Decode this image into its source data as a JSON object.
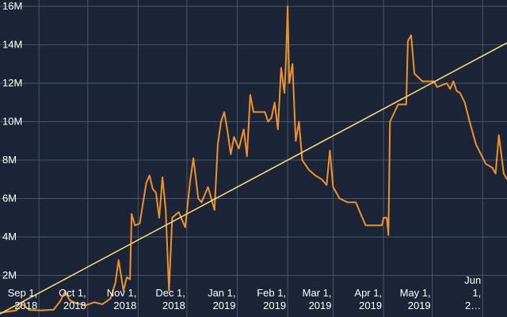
{
  "chart_data": {
    "type": "line",
    "title": "",
    "xlabel": "",
    "ylabel": "",
    "ylim": [
      0,
      16000000
    ],
    "xlim": [
      "2018-08-08",
      "2019-06-16"
    ],
    "grid": true,
    "legend": "none",
    "colors": {
      "background": "#1b2537",
      "grid": "#4a566b",
      "text": "#ffffff",
      "series": "#f0922b",
      "trend": "#f5d77a"
    },
    "y_ticks": [
      {
        "value": 2000000,
        "label": "2M"
      },
      {
        "value": 4000000,
        "label": "4M"
      },
      {
        "value": 6000000,
        "label": "6M"
      },
      {
        "value": 8000000,
        "label": "8M"
      },
      {
        "value": 10000000,
        "label": "10M"
      },
      {
        "value": 12000000,
        "label": "12M"
      },
      {
        "value": 14000000,
        "label": "14M"
      },
      {
        "value": 16000000,
        "label": "16M"
      }
    ],
    "x_ticks": [
      {
        "date": "2018-09-01",
        "lines": [
          "Sep 1,",
          "2018"
        ]
      },
      {
        "date": "2018-10-01",
        "lines": [
          "Oct 1,",
          "2018"
        ]
      },
      {
        "date": "2018-11-01",
        "lines": [
          "Nov 1,",
          "2018"
        ]
      },
      {
        "date": "2018-12-01",
        "lines": [
          "Dec 1,",
          "2018"
        ]
      },
      {
        "date": "2019-01-01",
        "lines": [
          "Jan 1,",
          "2019"
        ]
      },
      {
        "date": "2019-02-01",
        "lines": [
          "Feb 1,",
          "2019"
        ]
      },
      {
        "date": "2019-03-01",
        "lines": [
          "Mar 1,",
          "2019"
        ]
      },
      {
        "date": "2019-04-01",
        "lines": [
          "Apr 1,",
          "2019"
        ]
      },
      {
        "date": "2019-05-01",
        "lines": [
          "May 1,",
          "2019"
        ]
      },
      {
        "date": "2019-06-01",
        "lines": [
          "Jun",
          "1,",
          "2…"
        ]
      }
    ],
    "series": [
      {
        "values": [
          [
            "2018-08-08",
            50000
          ],
          [
            "2018-08-18",
            180000
          ],
          [
            "2018-08-22",
            500000
          ],
          [
            "2018-08-26",
            200000
          ],
          [
            "2018-09-02",
            180000
          ],
          [
            "2018-09-10",
            220000
          ],
          [
            "2018-09-14",
            650000
          ],
          [
            "2018-09-17",
            1150000
          ],
          [
            "2018-09-20",
            700000
          ],
          [
            "2018-09-24",
            550000
          ],
          [
            "2018-09-30",
            450000
          ],
          [
            "2018-10-05",
            600000
          ],
          [
            "2018-10-10",
            500000
          ],
          [
            "2018-10-15",
            800000
          ],
          [
            "2018-10-18",
            1600000
          ],
          [
            "2018-10-20",
            2800000
          ],
          [
            "2018-10-23",
            1200000
          ],
          [
            "2018-10-25",
            1900000
          ],
          [
            "2018-10-27",
            1800000
          ],
          [
            "2018-10-28",
            5200000
          ],
          [
            "2018-10-30",
            4600000
          ],
          [
            "2018-11-02",
            4700000
          ],
          [
            "2018-11-06",
            6800000
          ],
          [
            "2018-11-08",
            7200000
          ],
          [
            "2018-11-10",
            6500000
          ],
          [
            "2018-11-12",
            6300000
          ],
          [
            "2018-11-14",
            5000000
          ],
          [
            "2018-11-16",
            7100000
          ],
          [
            "2018-11-18",
            5400000
          ],
          [
            "2018-11-20",
            1200000
          ],
          [
            "2018-11-22",
            5000000
          ],
          [
            "2018-11-26",
            5300000
          ],
          [
            "2018-11-30",
            4500000
          ],
          [
            "2018-12-03",
            6900000
          ],
          [
            "2018-12-05",
            8100000
          ],
          [
            "2018-12-08",
            6000000
          ],
          [
            "2018-12-10",
            5800000
          ],
          [
            "2018-12-14",
            6600000
          ],
          [
            "2018-12-18",
            5400000
          ],
          [
            "2018-12-20",
            8800000
          ],
          [
            "2018-12-22",
            10000000
          ],
          [
            "2018-12-24",
            10500000
          ],
          [
            "2018-12-26",
            9500000
          ],
          [
            "2018-12-28",
            8300000
          ],
          [
            "2018-12-30",
            9200000
          ],
          [
            "2019-01-02",
            8600000
          ],
          [
            "2019-01-05",
            9600000
          ],
          [
            "2019-01-07",
            8200000
          ],
          [
            "2019-01-09",
            11400000
          ],
          [
            "2019-01-11",
            10500000
          ],
          [
            "2019-01-14",
            10500000
          ],
          [
            "2019-01-18",
            10500000
          ],
          [
            "2019-01-20",
            10000000
          ],
          [
            "2019-01-22",
            10200000
          ],
          [
            "2019-01-24",
            11000000
          ],
          [
            "2019-01-26",
            9600000
          ],
          [
            "2019-01-28",
            12800000
          ],
          [
            "2019-01-30",
            11500000
          ],
          [
            "2019-01-31",
            13200000
          ],
          [
            "2019-02-01",
            16000000
          ],
          [
            "2019-02-02",
            12000000
          ],
          [
            "2019-02-04",
            13000000
          ],
          [
            "2019-02-06",
            9000000
          ],
          [
            "2019-02-08",
            10000000
          ],
          [
            "2019-02-10",
            8000000
          ],
          [
            "2019-02-14",
            7500000
          ],
          [
            "2019-02-18",
            7200000
          ],
          [
            "2019-02-22",
            7000000
          ],
          [
            "2019-02-25",
            6700000
          ],
          [
            "2019-02-27",
            8500000
          ],
          [
            "2019-03-01",
            6600000
          ],
          [
            "2019-03-05",
            6000000
          ],
          [
            "2019-03-10",
            5800000
          ],
          [
            "2019-03-15",
            5800000
          ],
          [
            "2019-03-21",
            4600000
          ],
          [
            "2019-03-28",
            4600000
          ],
          [
            "2019-03-31",
            4600000
          ],
          [
            "2019-04-01",
            5000000
          ],
          [
            "2019-04-03",
            5000000
          ],
          [
            "2019-04-04",
            4100000
          ],
          [
            "2019-04-05",
            10000000
          ],
          [
            "2019-04-10",
            10900000
          ],
          [
            "2019-04-15",
            10900000
          ],
          [
            "2019-04-16",
            14200000
          ],
          [
            "2019-04-18",
            14500000
          ],
          [
            "2019-04-20",
            12500000
          ],
          [
            "2019-04-25",
            12100000
          ],
          [
            "2019-05-02",
            12100000
          ],
          [
            "2019-05-04",
            11800000
          ],
          [
            "2019-05-10",
            12000000
          ],
          [
            "2019-05-12",
            11700000
          ],
          [
            "2019-05-14",
            12100000
          ],
          [
            "2019-05-16",
            11600000
          ],
          [
            "2019-05-18",
            11500000
          ],
          [
            "2019-05-21",
            11000000
          ],
          [
            "2019-05-24",
            10000000
          ],
          [
            "2019-05-28",
            8800000
          ],
          [
            "2019-06-03",
            7800000
          ],
          [
            "2019-06-07",
            7600000
          ],
          [
            "2019-06-09",
            7300000
          ],
          [
            "2019-06-11",
            9300000
          ],
          [
            "2019-06-14",
            7300000
          ],
          [
            "2019-06-16",
            7000000
          ]
        ]
      }
    ],
    "trend_line": {
      "start": [
        "2018-08-08",
        0
      ],
      "end": [
        "2019-06-16",
        14100000
      ]
    }
  }
}
